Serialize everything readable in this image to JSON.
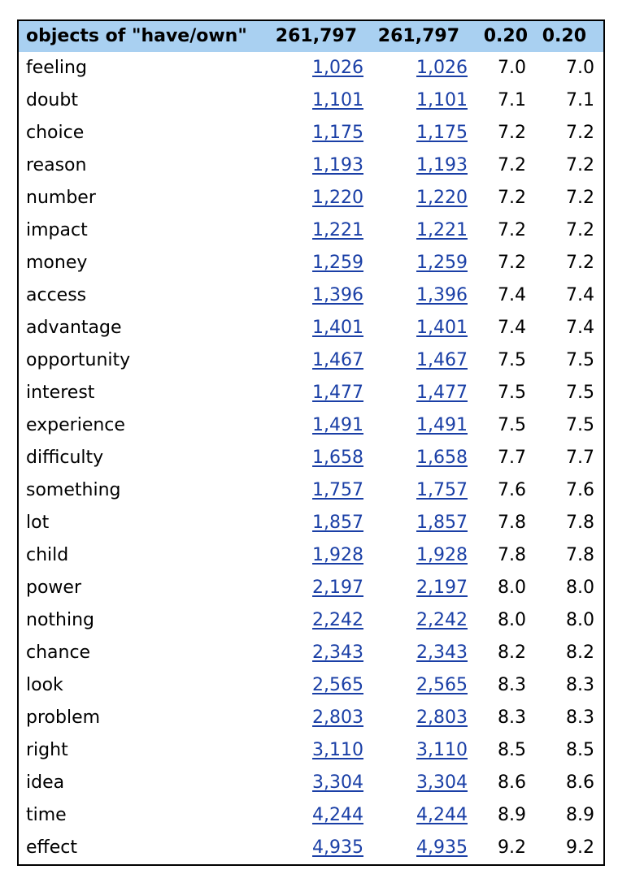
{
  "table": {
    "header": {
      "label": "objects of \"have/own\"",
      "freq1": "261,797",
      "freq2": "261,797",
      "score1": "0.20",
      "score2": "0.20"
    },
    "rows": [
      {
        "word": "feeling",
        "freq1": "1,026",
        "freq2": "1,026",
        "score1": "7.0",
        "score2": "7.0"
      },
      {
        "word": "doubt",
        "freq1": "1,101",
        "freq2": "1,101",
        "score1": "7.1",
        "score2": "7.1"
      },
      {
        "word": "choice",
        "freq1": "1,175",
        "freq2": "1,175",
        "score1": "7.2",
        "score2": "7.2"
      },
      {
        "word": "reason",
        "freq1": "1,193",
        "freq2": "1,193",
        "score1": "7.2",
        "score2": "7.2"
      },
      {
        "word": "number",
        "freq1": "1,220",
        "freq2": "1,220",
        "score1": "7.2",
        "score2": "7.2"
      },
      {
        "word": "impact",
        "freq1": "1,221",
        "freq2": "1,221",
        "score1": "7.2",
        "score2": "7.2"
      },
      {
        "word": "money",
        "freq1": "1,259",
        "freq2": "1,259",
        "score1": "7.2",
        "score2": "7.2"
      },
      {
        "word": "access",
        "freq1": "1,396",
        "freq2": "1,396",
        "score1": "7.4",
        "score2": "7.4"
      },
      {
        "word": "advantage",
        "freq1": "1,401",
        "freq2": "1,401",
        "score1": "7.4",
        "score2": "7.4"
      },
      {
        "word": "opportunity",
        "freq1": "1,467",
        "freq2": "1,467",
        "score1": "7.5",
        "score2": "7.5"
      },
      {
        "word": "interest",
        "freq1": "1,477",
        "freq2": "1,477",
        "score1": "7.5",
        "score2": "7.5"
      },
      {
        "word": "experience",
        "freq1": "1,491",
        "freq2": "1,491",
        "score1": "7.5",
        "score2": "7.5"
      },
      {
        "word": "difficulty",
        "freq1": "1,658",
        "freq2": "1,658",
        "score1": "7.7",
        "score2": "7.7"
      },
      {
        "word": "something",
        "freq1": "1,757",
        "freq2": "1,757",
        "score1": "7.6",
        "score2": "7.6"
      },
      {
        "word": "lot",
        "freq1": "1,857",
        "freq2": "1,857",
        "score1": "7.8",
        "score2": "7.8"
      },
      {
        "word": "child",
        "freq1": "1,928",
        "freq2": "1,928",
        "score1": "7.8",
        "score2": "7.8"
      },
      {
        "word": "power",
        "freq1": "2,197",
        "freq2": "2,197",
        "score1": "8.0",
        "score2": "8.0"
      },
      {
        "word": "nothing",
        "freq1": "2,242",
        "freq2": "2,242",
        "score1": "8.0",
        "score2": "8.0"
      },
      {
        "word": "chance",
        "freq1": "2,343",
        "freq2": "2,343",
        "score1": "8.2",
        "score2": "8.2"
      },
      {
        "word": "look",
        "freq1": "2,565",
        "freq2": "2,565",
        "score1": "8.3",
        "score2": "8.3"
      },
      {
        "word": "problem",
        "freq1": "2,803",
        "freq2": "2,803",
        "score1": "8.3",
        "score2": "8.3"
      },
      {
        "word": "right",
        "freq1": "3,110",
        "freq2": "3,110",
        "score1": "8.5",
        "score2": "8.5"
      },
      {
        "word": "idea",
        "freq1": "3,304",
        "freq2": "3,304",
        "score1": "8.6",
        "score2": "8.6"
      },
      {
        "word": "time",
        "freq1": "4,244",
        "freq2": "4,244",
        "score1": "8.9",
        "score2": "8.9"
      },
      {
        "word": "effect",
        "freq1": "4,935",
        "freq2": "4,935",
        "score1": "9.2",
        "score2": "9.2"
      }
    ]
  },
  "colors": {
    "header_bg": "#a9d0f1",
    "link": "#1a3fa6",
    "border": "#000000"
  }
}
